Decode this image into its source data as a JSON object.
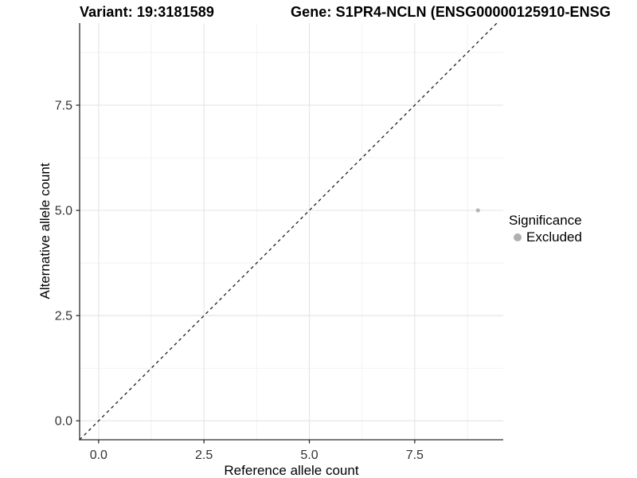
{
  "chart_data": {
    "type": "scatter",
    "title_left": "Variant: 19:3181589",
    "title_right": "Gene: S1PR4-NCLN (ENSG00000125910-ENSG",
    "xlabel": "Reference allele count",
    "ylabel": "Alternative allele count",
    "xlim": [
      -0.45,
      9.6
    ],
    "ylim": [
      -0.45,
      9.45
    ],
    "x_major_ticks": [
      0,
      2.5,
      5,
      7.5
    ],
    "x_minor_ticks": [
      1.25,
      3.75,
      6.25,
      8.75
    ],
    "y_major_ticks": [
      0,
      2.5,
      5,
      7.5
    ],
    "y_minor_ticks": [
      1.25,
      3.75,
      6.25,
      8.75
    ],
    "tick_decimals": 1,
    "grid": true,
    "identity_line": {
      "slope": 1,
      "intercept": 0,
      "linetype": "dashed",
      "color": "#1f1f1f"
    },
    "series": [
      {
        "name": "Excluded",
        "color": "#b5b5b5",
        "points": [
          {
            "x": 9,
            "y": 5
          }
        ]
      }
    ],
    "legend": {
      "title": "Significance",
      "position": "right",
      "items": [
        {
          "label": "Excluded",
          "color": "#b0b0b0"
        }
      ]
    },
    "colors": {
      "grid_major": "#e6e6e6",
      "grid_minor": "#f1f1f1",
      "axis": "#2a2a2a",
      "tick_text": "#333333",
      "background": "#ffffff"
    }
  }
}
